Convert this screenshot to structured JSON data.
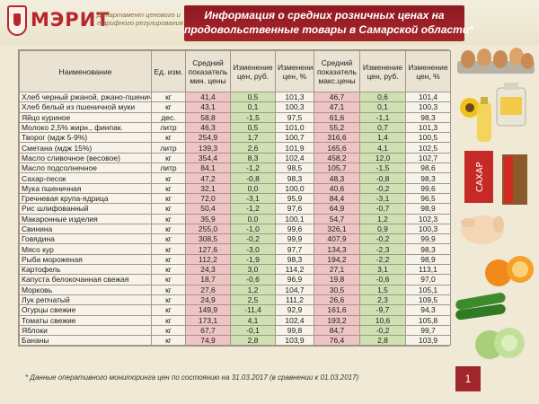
{
  "logo": {
    "name": "МЭРИТ",
    "subtitle": "Департамент ценового и тарифного регулирования"
  },
  "title": {
    "line1": "Информация о средних розничных ценах на",
    "line2": "продовольственные товары  в Самарской области*"
  },
  "table": {
    "headers": [
      "Наименование",
      "Ед. изм.",
      "Средний показатель мин. цены",
      "Изменение цен, руб.",
      "Изменение цен, %",
      "Средний показатель макс.цены",
      "Изменение цен, руб.",
      "Изменение цен, %"
    ],
    "rows": [
      [
        "Хлеб черный ржаной, ржано-пшеничный",
        "кг",
        "41,4",
        "0,5",
        "101,3",
        "46,7",
        "0,6",
        "101,4"
      ],
      [
        "Хлеб белый из пшеничной муки",
        "кг",
        "43,1",
        "0,1",
        "100,3",
        "47,1",
        "0,1",
        "100,3"
      ],
      [
        "Яйцо куриное",
        "дес.",
        "58,8",
        "-1,5",
        "97,5",
        "61,6",
        "-1,1",
        "98,3"
      ],
      [
        "Молоко 2,5% жирн., финпак.",
        "литр",
        "46,3",
        "0,5",
        "101,0",
        "55,2",
        "0,7",
        "101,3"
      ],
      [
        "Творог (мдж 5-9%)",
        "кг",
        "254,9",
        "1,7",
        "100,7",
        "316,6",
        "1,4",
        "100,5"
      ],
      [
        "Сметана (мдж 15%)",
        "литр",
        "139,3",
        "2,6",
        "101,9",
        "165,6",
        "4,1",
        "102,5"
      ],
      [
        "Масло сливочное (весовое)",
        "кг",
        "354,4",
        "8,3",
        "102,4",
        "458,2",
        "12,0",
        "102,7"
      ],
      [
        "Масло подсолнечное",
        "литр",
        "84,1",
        "-1,2",
        "98,5",
        "105,7",
        "-1,5",
        "98,6"
      ],
      [
        "Сахар-песок",
        "кг",
        "47,2",
        "-0,8",
        "98,3",
        "48,3",
        "-0,8",
        "98,3"
      ],
      [
        "Мука пшеничная",
        "кг",
        "32,1",
        "0,0",
        "100,0",
        "40,6",
        "-0,2",
        "99,6"
      ],
      [
        "Гречневая крупа-ядрица",
        "кг",
        "72,0",
        "-3,1",
        "95,9",
        "84,4",
        "-3,1",
        "96,5"
      ],
      [
        "Рис шлифованный",
        "кг",
        "50,4",
        "-1,2",
        "97,6",
        "64,9",
        "-0,7",
        "98,9"
      ],
      [
        "Макаронные изделия",
        "кг",
        "35,9",
        "0,0",
        "100,1",
        "54,7",
        "1,2",
        "102,3"
      ],
      [
        "Свинина",
        "кг",
        "255,0",
        "-1,0",
        "99,6",
        "326,1",
        "0,9",
        "100,3"
      ],
      [
        "Говядина",
        "кг",
        "308,5",
        "-0,2",
        "99,9",
        "407,9",
        "-0,2",
        "99,9"
      ],
      [
        "Мясо кур",
        "кг",
        "127,6",
        "-3,0",
        "97,7",
        "134,3",
        "-2,3",
        "98,3"
      ],
      [
        "Рыба мороженая",
        "кг",
        "112,2",
        "-1,9",
        "98,3",
        "194,2",
        "-2,2",
        "98,9"
      ],
      [
        "Картофель",
        "кг",
        "24,3",
        "3,0",
        "114,2",
        "27,1",
        "3,1",
        "113,1"
      ],
      [
        "Капуста белокочанная свежая",
        "кг",
        "18,7",
        "-0,6",
        "96,9",
        "19,8",
        "-0,6",
        "97,0"
      ],
      [
        "Морковь",
        "кг",
        "27,6",
        "1,2",
        "104,7",
        "30,5",
        "1,5",
        "105,1"
      ],
      [
        "Лук репчатый",
        "кг",
        "24,9",
        "2,5",
        "111,2",
        "26,6",
        "2,3",
        "109,5"
      ],
      [
        "Огурцы свежие",
        "кг",
        "149,9",
        "-11,4",
        "92,9",
        "161,6",
        "-9,7",
        "94,3"
      ],
      [
        "Томаты свежие",
        "кг",
        "173,1",
        "4,1",
        "102,4",
        "193,2",
        "10,6",
        "105,8"
      ],
      [
        "Яблоки",
        "кг",
        "67,7",
        "-0,1",
        "99,8",
        "84,7",
        "-0,2",
        "99,7"
      ],
      [
        "Бананы",
        "кг",
        "74,9",
        "2,8",
        "103,9",
        "76,4",
        "2,8",
        "103,9"
      ]
    ]
  },
  "footnote": "* Данные оперативного мониторинга цен по состоянию на  31.03.2017 (в сравнении к 01.03.2017)",
  "page_number": "1",
  "colors": {
    "accent": "#a1262b",
    "price_cell": "#eec4c4",
    "change_cell": "#cfe1b3",
    "background": "#efe9d6"
  },
  "side_images": [
    "eggs-icon",
    "milk-icon",
    "oil-icon",
    "sugar-icon",
    "buckwheat-icon",
    "chicken-icon",
    "orange-icon",
    "cucumber-icon",
    "cabbage-icon"
  ]
}
